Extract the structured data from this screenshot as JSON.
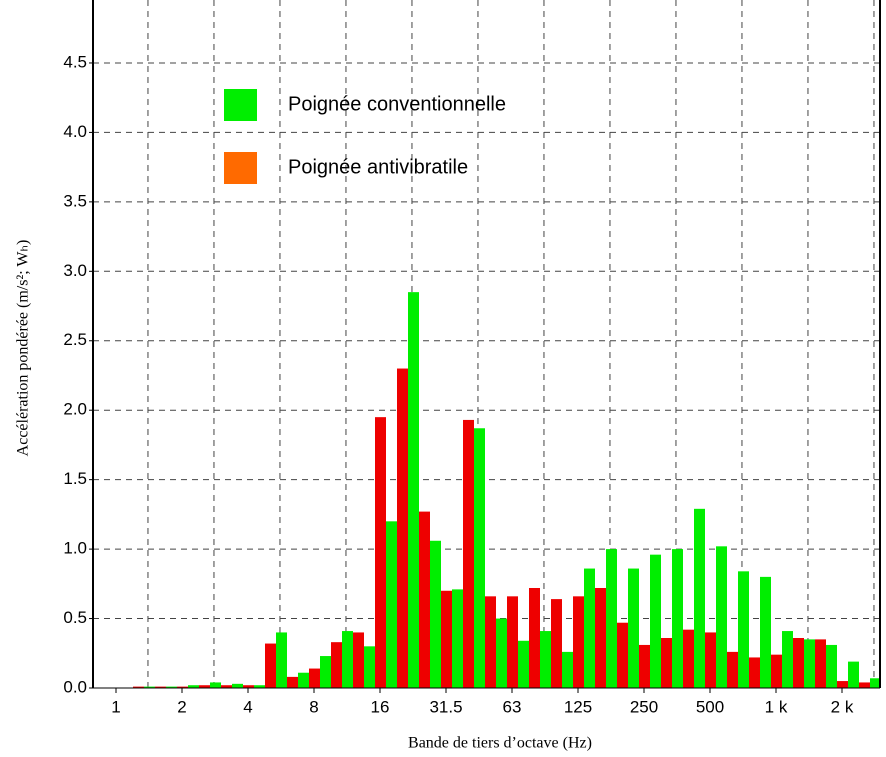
{
  "chart_data": {
    "type": "bar",
    "xlabel": "Bande de tiers d’octave (Hz)",
    "ylabel": "Accélération pondérée (m/s²; Wₕ)",
    "categories": [
      "1",
      null,
      null,
      "2",
      null,
      null,
      "4",
      null,
      null,
      "8",
      null,
      null,
      "16",
      null,
      null,
      "31.5",
      null,
      null,
      "63",
      null,
      null,
      "125",
      null,
      null,
      "250",
      null,
      null,
      "500",
      null,
      null,
      "1 k",
      null,
      null,
      "2 k",
      null
    ],
    "series": [
      {
        "name": "Poignée antivibratile",
        "color": "#ee0000",
        "legend_color": "#ff6a00",
        "values": [
          0,
          0.01,
          0.01,
          0.01,
          0.02,
          0.02,
          0.02,
          0.32,
          0.08,
          0.14,
          0.33,
          0.4,
          1.95,
          2.3,
          1.27,
          0.7,
          1.93,
          0.66,
          0.66,
          0.72,
          0.64,
          0.66,
          0.72,
          0.47,
          0.31,
          0.36,
          0.42,
          0.4,
          0.26,
          0.22,
          0.24,
          0.36,
          0.35,
          0.05,
          0.04
        ]
      },
      {
        "name": "Poignée conventionnelle",
        "color": "#00ee00",
        "legend_color": "#00ee00",
        "values": [
          0,
          0.01,
          0.01,
          0.02,
          0.04,
          0.03,
          0.02,
          0.4,
          0.11,
          0.23,
          0.41,
          0.3,
          1.2,
          2.85,
          1.06,
          0.71,
          1.87,
          0.5,
          0.34,
          0.41,
          0.26,
          0.86,
          1.0,
          0.86,
          0.96,
          1.0,
          1.29,
          1.02,
          0.84,
          0.8,
          0.41,
          0.35,
          0.31,
          0.19,
          0.07
        ]
      }
    ],
    "ylim": [
      0,
      4.9
    ],
    "yticks": [
      {
        "value": 0,
        "label": "0.0"
      },
      {
        "value": 0.5,
        "label": "0.5"
      },
      {
        "value": 1,
        "label": "1.0"
      },
      {
        "value": 1.5,
        "label": "1.5"
      },
      {
        "value": 2,
        "label": "2.0"
      },
      {
        "value": 2.5,
        "label": "2.5"
      },
      {
        "value": 3,
        "label": "3.0"
      },
      {
        "value": 3.5,
        "label": "3.5"
      },
      {
        "value": 4,
        "label": "4.0"
      },
      {
        "value": 4.5,
        "label": "4.5"
      }
    ],
    "grid": true
  }
}
